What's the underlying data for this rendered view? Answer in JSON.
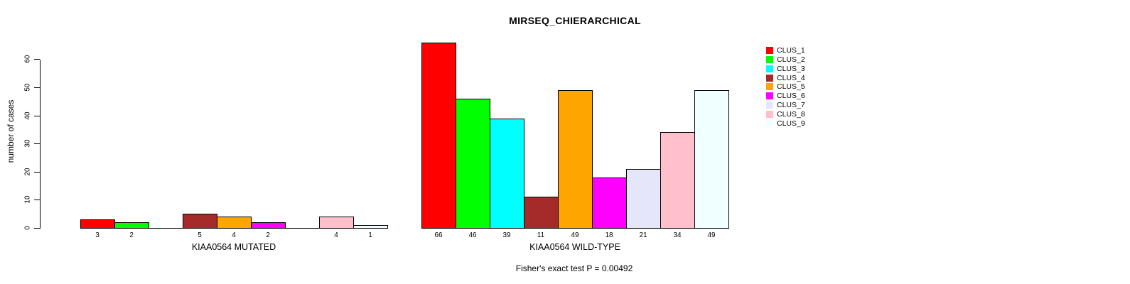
{
  "header": {
    "title": "MIRSEQ_CHIERARCHICAL"
  },
  "y_axis": {
    "label": "number of cases",
    "ticks": [
      0,
      10,
      20,
      30,
      40,
      50,
      60
    ]
  },
  "footer": {
    "note": "Fisher's exact test P = 0.00492"
  },
  "legend": {
    "position": "right",
    "items": [
      {
        "label": "CLUS_1",
        "color": "#FF0000"
      },
      {
        "label": "CLUS_2",
        "color": "#00FF00"
      },
      {
        "label": "CLUS_3",
        "color": "#00FFFF"
      },
      {
        "label": "CLUS_4",
        "color": "#A52A2A"
      },
      {
        "label": "CLUS_5",
        "color": "#FFA500"
      },
      {
        "label": "CLUS_6",
        "color": "#FF00FF"
      },
      {
        "label": "CLUS_7",
        "color": "#E6E6FA"
      },
      {
        "label": "CLUS_8",
        "color": "#FFC0CB"
      },
      {
        "label": "CLUS_9",
        "color": "#F0FFFF"
      }
    ]
  },
  "chart_data": {
    "type": "bar",
    "title": "MIRSEQ_CHIERARCHICAL",
    "ylabel": "number of cases",
    "xlabel": "",
    "ylim": [
      0,
      66
    ],
    "grid": false,
    "legend_position": "right",
    "annotation": "Fisher's exact test P = 0.00492",
    "categories": [
      "CLUS_1",
      "CLUS_2",
      "CLUS_3",
      "CLUS_4",
      "CLUS_5",
      "CLUS_6",
      "CLUS_7",
      "CLUS_8",
      "CLUS_9"
    ],
    "colors": [
      "#FF0000",
      "#00FF00",
      "#00FFFF",
      "#A52A2A",
      "#FFA500",
      "#FF00FF",
      "#E6E6FA",
      "#FFC0CB",
      "#F0FFFF"
    ],
    "groups": [
      {
        "label": "KIAA0564 MUTATED",
        "values": [
          3,
          2,
          0,
          5,
          4,
          2,
          0,
          4,
          1
        ]
      },
      {
        "label": "KIAA0564 WILD-TYPE",
        "values": [
          66,
          46,
          39,
          11,
          49,
          18,
          21,
          34,
          49
        ]
      }
    ]
  }
}
